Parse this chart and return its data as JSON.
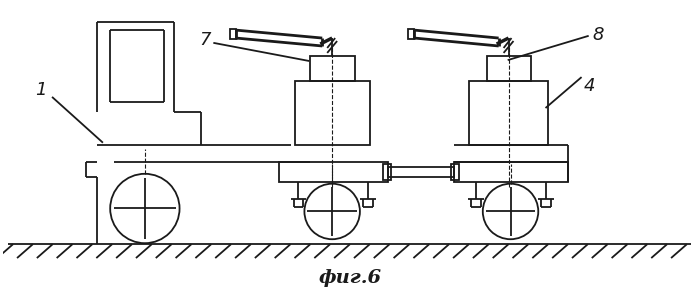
{
  "title": "фиг.6",
  "label_1": "1",
  "label_4": "4",
  "label_7": "7",
  "label_8": "8",
  "bg_color": "#ffffff",
  "line_color": "#1a1a1a",
  "lw": 1.3,
  "figsize": [
    6.99,
    3.07
  ],
  "dpi": 100
}
